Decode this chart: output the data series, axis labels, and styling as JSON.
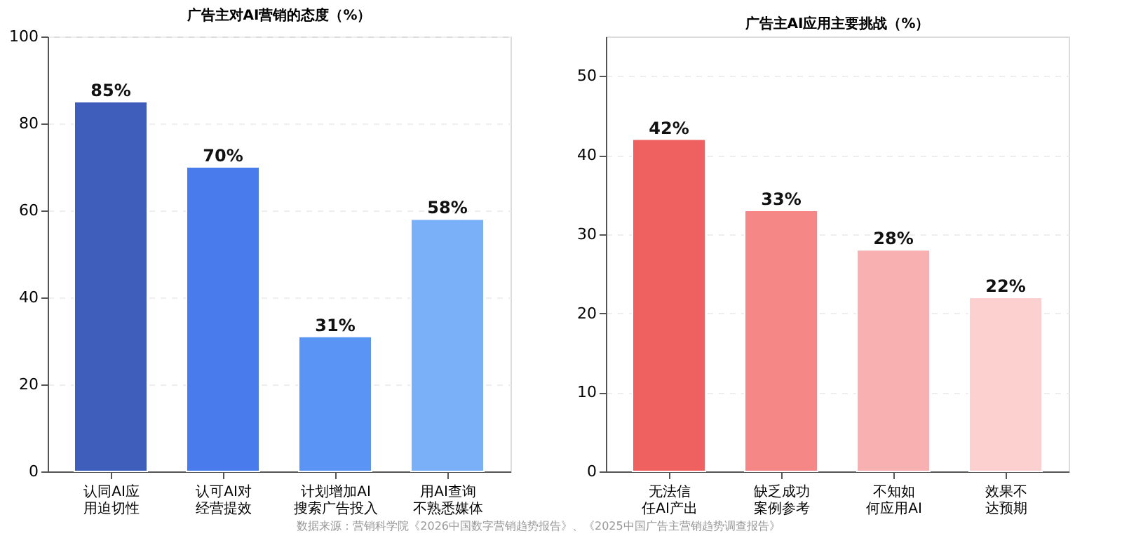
{
  "chart_data": [
    {
      "type": "bar",
      "title": "广告主对AI营销的态度（%）",
      "categories": [
        "认同AI应用迫切性",
        "认可AI对经营提效",
        "计划增加AI搜索广告投入",
        "用AI查询不熟悉媒体"
      ],
      "values": [
        85,
        70,
        31,
        58
      ],
      "colors": [
        "#3f5dbb",
        "#4a7bec",
        "#5a94f5",
        "#7ab0f8"
      ],
      "value_labels": [
        "85%",
        "70%",
        "31%",
        "58%"
      ],
      "ylim": [
        0,
        100
      ],
      "yticks": [
        0,
        20,
        40,
        60,
        80,
        100
      ],
      "grid": "y"
    },
    {
      "type": "bar",
      "title": "广告主AI应用主要挑战（%）",
      "categories": [
        "无法信任AI产出",
        "缺乏成功案例参考",
        "不知如何应用AI",
        "效果不达预期"
      ],
      "values": [
        42,
        33,
        28,
        22
      ],
      "colors": [
        "#ef6060",
        "#f68787",
        "#f9b0b0",
        "#fdd0d0"
      ],
      "value_labels": [
        "42%",
        "33%",
        "28%",
        "22%"
      ],
      "ylim": [
        0,
        55
      ],
      "yticks": [
        0,
        10,
        20,
        30,
        40,
        50
      ],
      "grid": "y",
      "annotations": [
        "数据来源：营销科学院《2026中国数字营销趋势报告》、《2025中国广告主营销趋势调查报告》"
      ]
    }
  ]
}
